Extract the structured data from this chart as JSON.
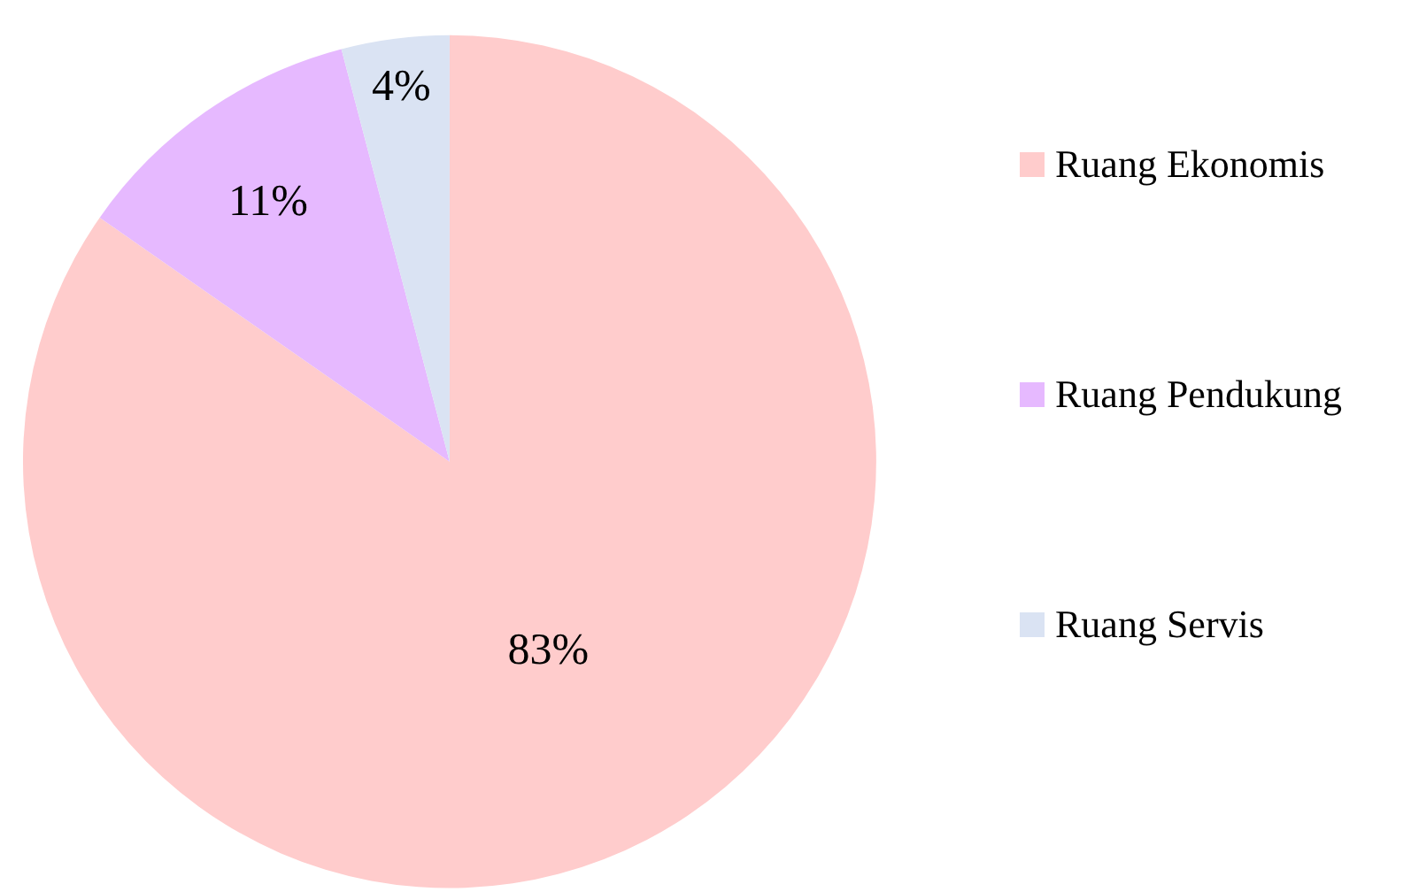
{
  "chart_data": {
    "type": "pie",
    "categories": [
      "Ruang Ekonomis",
      "Ruang Pendukung",
      "Ruang Servis"
    ],
    "values": [
      83,
      11,
      4
    ],
    "colors": [
      "#ffcccc",
      "#e6b9ff",
      "#dae3f3"
    ],
    "value_labels": [
      "83%",
      "11%",
      "4%"
    ],
    "legend": "right"
  }
}
